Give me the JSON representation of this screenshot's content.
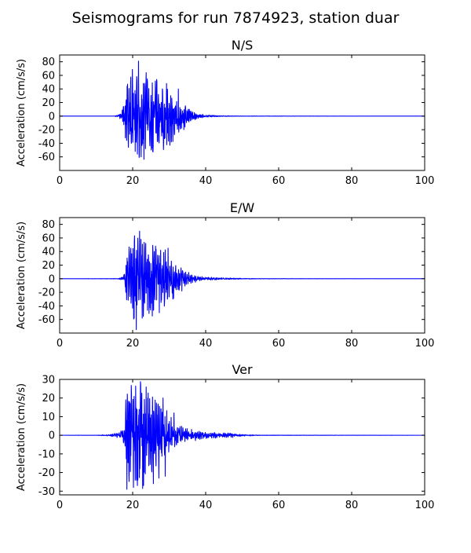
{
  "figure": {
    "title": "Seismograms for run 7874923, station duar"
  },
  "chart_data": [
    {
      "type": "line",
      "title": "N/S",
      "xlabel": "",
      "ylabel": "Acceleration (cm/s/s)",
      "xlim": [
        0,
        100
      ],
      "ylim": [
        -80,
        90
      ],
      "xticks": [
        0,
        20,
        40,
        60,
        80,
        100
      ],
      "yticks": [
        -60,
        -40,
        -20,
        0,
        20,
        40,
        60,
        80
      ],
      "grid": false,
      "color": "#0000ff",
      "envelope": [
        [
          0,
          0
        ],
        [
          15,
          0
        ],
        [
          17,
          4
        ],
        [
          18,
          38
        ],
        [
          20,
          55
        ],
        [
          22,
          58
        ],
        [
          24,
          50
        ],
        [
          26,
          45
        ],
        [
          28,
          42
        ],
        [
          30,
          38
        ],
        [
          32,
          25
        ],
        [
          34,
          15
        ],
        [
          36,
          7
        ],
        [
          38,
          3
        ],
        [
          40,
          1.5
        ],
        [
          44,
          0.5
        ],
        [
          50,
          0.2
        ],
        [
          100,
          0
        ]
      ],
      "peaks": [
        [
          17.4,
          10
        ],
        [
          18.0,
          -32
        ],
        [
          18.5,
          44
        ],
        [
          19.6,
          -40
        ],
        [
          20.7,
          -52
        ],
        [
          21.6,
          81
        ],
        [
          22.3,
          -60
        ],
        [
          22.9,
          48
        ],
        [
          23.5,
          -48
        ],
        [
          25.6,
          -45
        ],
        [
          26.6,
          54
        ],
        [
          28.5,
          -38
        ],
        [
          29.3,
          48
        ],
        [
          30.6,
          -38
        ],
        [
          32.5,
          40
        ],
        [
          34.0,
          -20
        ],
        [
          35.5,
          10
        ]
      ],
      "peak_x": 21.6,
      "peak_y": 81
    },
    {
      "type": "line",
      "title": "E/W",
      "xlabel": "",
      "ylabel": "Acceleration (cm/s/s)",
      "xlim": [
        0,
        100
      ],
      "ylim": [
        -80,
        90
      ],
      "xticks": [
        0,
        20,
        40,
        60,
        80,
        100
      ],
      "yticks": [
        -60,
        -40,
        -20,
        0,
        20,
        40,
        60,
        80
      ],
      "grid": false,
      "color": "#0000ff",
      "envelope": [
        [
          0,
          0
        ],
        [
          16,
          0.3
        ],
        [
          17.5,
          3
        ],
        [
          18,
          22
        ],
        [
          19,
          40
        ],
        [
          20,
          52
        ],
        [
          22,
          55
        ],
        [
          24,
          48
        ],
        [
          26,
          42
        ],
        [
          28,
          38
        ],
        [
          30,
          30
        ],
        [
          32,
          18
        ],
        [
          34,
          10
        ],
        [
          36,
          6
        ],
        [
          38,
          3
        ],
        [
          40,
          2
        ],
        [
          44,
          1.2
        ],
        [
          48,
          0.8
        ],
        [
          52,
          0.4
        ],
        [
          60,
          0.2
        ],
        [
          100,
          0
        ]
      ],
      "peaks": [
        [
          18.1,
          -20
        ],
        [
          19.5,
          45
        ],
        [
          20.4,
          -58
        ],
        [
          21.0,
          -75
        ],
        [
          21.9,
          70
        ],
        [
          22.6,
          -58
        ],
        [
          23.6,
          52
        ],
        [
          25.4,
          -55
        ],
        [
          26.3,
          48
        ],
        [
          27.3,
          -50
        ],
        [
          27.8,
          -35
        ],
        [
          29.7,
          45
        ],
        [
          31.0,
          -30
        ],
        [
          33.5,
          -18
        ]
      ],
      "peak_x": 21.9,
      "peak_y": 70
    },
    {
      "type": "line",
      "title": "Ver",
      "xlabel": "",
      "ylabel": "Acceleration (cm/s/s)",
      "xlim": [
        0,
        100
      ],
      "ylim": [
        -32,
        30
      ],
      "xticks": [
        0,
        20,
        40,
        60,
        80,
        100
      ],
      "yticks": [
        -30,
        -20,
        -10,
        0,
        10,
        20,
        30
      ],
      "grid": false,
      "color": "#0000ff",
      "envelope": [
        [
          0,
          0
        ],
        [
          10,
          0.05
        ],
        [
          13,
          0.3
        ],
        [
          15,
          0.8
        ],
        [
          16,
          1.2
        ],
        [
          17,
          2
        ],
        [
          17.6,
          4
        ],
        [
          18,
          16
        ],
        [
          19,
          22
        ],
        [
          20,
          24
        ],
        [
          22,
          24
        ],
        [
          24,
          20
        ],
        [
          26,
          17
        ],
        [
          28,
          13
        ],
        [
          30,
          9
        ],
        [
          32,
          5
        ],
        [
          34,
          3.5
        ],
        [
          36,
          2.5
        ],
        [
          38,
          2
        ],
        [
          40,
          1.5
        ],
        [
          42,
          1.4
        ],
        [
          44,
          1
        ],
        [
          46,
          1.2
        ],
        [
          48,
          0.8
        ],
        [
          50,
          0.4
        ],
        [
          52,
          0.3
        ],
        [
          55,
          0.1
        ],
        [
          100,
          0
        ]
      ],
      "peaks": [
        [
          18.1,
          19
        ],
        [
          18.4,
          -29
        ],
        [
          19.3,
          17
        ],
        [
          20.2,
          -28
        ],
        [
          21.3,
          -27
        ],
        [
          22.2,
          27
        ],
        [
          23.0,
          -27
        ],
        [
          24.1,
          20
        ],
        [
          25.7,
          -26
        ],
        [
          27.2,
          -23
        ],
        [
          28.3,
          20
        ],
        [
          28.9,
          -22
        ],
        [
          31.3,
          12
        ]
      ],
      "peak_x": 22.2,
      "peak_y": 27
    }
  ]
}
